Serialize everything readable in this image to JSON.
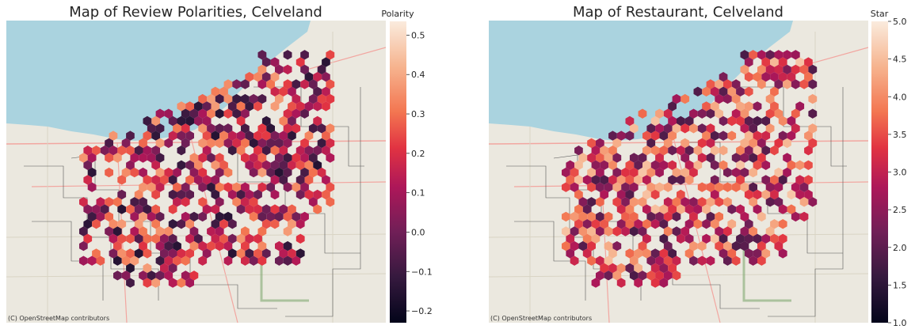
{
  "chart_data": [
    {
      "type": "heatmap",
      "subtype": "hexbin-map",
      "title": "Map of Review Polarities, Celveland",
      "attribution": "(C) OpenStreetMap contributors",
      "colorbar": {
        "label": "Polarity",
        "range": [
          -0.23,
          0.535
        ],
        "ticks": [
          "−0.2",
          "−0.1",
          "0.0",
          "0.1",
          "0.2",
          "0.3",
          "0.4",
          "0.5"
        ],
        "tick_values": [
          -0.2,
          -0.1,
          0.0,
          0.1,
          0.2,
          0.3,
          0.4,
          0.5
        ]
      },
      "colors": {
        "low": "#03051a",
        "mid": "#cb1b4f",
        "high": "#faebdd"
      }
    },
    {
      "type": "heatmap",
      "subtype": "hexbin-map",
      "title": "Map of Restaurant, Celveland",
      "attribution": "(C) OpenStreetMap contributors",
      "colorbar": {
        "label": "Star",
        "range": [
          1.0,
          5.0
        ],
        "ticks": [
          "1.0",
          "1.5",
          "2.0",
          "2.5",
          "3.0",
          "3.5",
          "4.0",
          "4.5",
          "5.0"
        ],
        "tick_values": [
          1.0,
          1.5,
          2.0,
          2.5,
          3.0,
          3.5,
          4.0,
          4.5,
          5.0
        ]
      },
      "colors": {
        "low": "#03051a",
        "mid": "#cb1b4f",
        "high": "#faebdd"
      }
    }
  ]
}
